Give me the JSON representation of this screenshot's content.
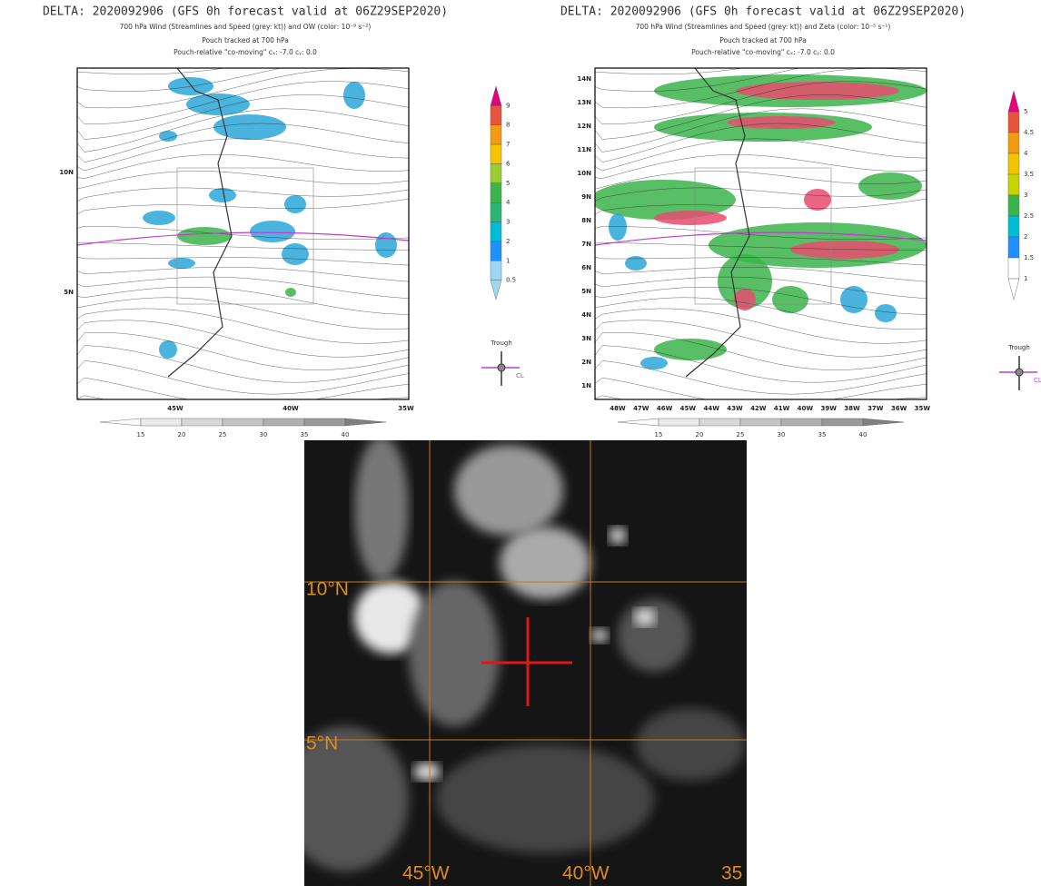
{
  "panels": [
    {
      "title": "DELTA: 2020092906 (GFS 0h forecast valid at 06Z29SEP2020)",
      "subtitle": "700 hPa Wind (Streamlines and Speed (grey: kt)) and OW (color: 10⁻⁹ s⁻²)",
      "note1": "Pouch tracked at 700 hPa",
      "note2": "Pouch-relative \"co-moving\" cₓ: -7.0 cᵧ: 0.0",
      "lat_labels": [
        "10N",
        "5N"
      ],
      "lon_labels": [
        "45W",
        "40W",
        "35W"
      ],
      "colorbar_labels": [
        "9",
        "8",
        "7",
        "6",
        "5",
        "4",
        "3",
        "2",
        "1",
        "0.5"
      ],
      "speed_labels": [
        "15",
        "20",
        "25",
        "30",
        "35",
        "40"
      ],
      "legend": {
        "trough": "Trough",
        "cl": "CL"
      }
    },
    {
      "title": "DELTA: 2020092906 (GFS 0h forecast valid at 06Z29SEP2020)",
      "subtitle": "700 hPa Wind (Streamlines and Speed (grey: kt)) and Zeta (color: 10⁻⁵ s⁻¹)",
      "note1": "Pouch tracked at 700 hPa",
      "note2": "Pouch-relative \"co-moving\" cₓ: -7.0 cᵧ: 0.0",
      "lat_labels": [
        "14N",
        "13N",
        "12N",
        "11N",
        "10N",
        "9N",
        "8N",
        "7N",
        "6N",
        "5N",
        "4N",
        "3N",
        "2N",
        "1N"
      ],
      "lon_labels": [
        "48W",
        "47W",
        "46W",
        "45W",
        "44W",
        "43W",
        "42W",
        "41W",
        "40W",
        "39W",
        "38W",
        "37W",
        "36W",
        "35W"
      ],
      "colorbar_labels": [
        "5",
        "4.5",
        "4",
        "3.5",
        "3",
        "2.5",
        "2",
        "1.5",
        "1"
      ],
      "speed_labels": [
        "15",
        "20",
        "25",
        "30",
        "35",
        "40"
      ],
      "legend": {
        "trough": "Trough",
        "cl": "CL"
      }
    }
  ],
  "satellite": {
    "lat_labels": [
      "10°N",
      "5°N"
    ],
    "lon_labels": [
      "45°W",
      "40°W",
      "35"
    ]
  }
}
